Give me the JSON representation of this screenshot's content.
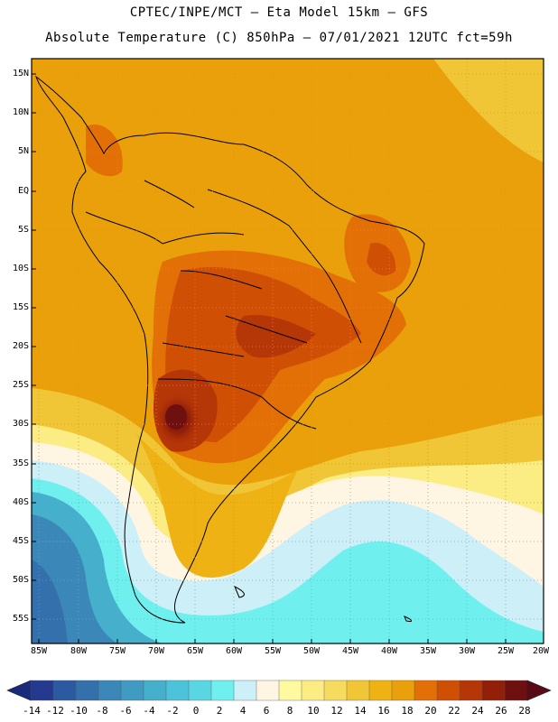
{
  "header": {
    "line1": "CPTEC/INPE/MCT – Eta Model 15km – GFS",
    "line2": "Absolute Temperature (C) 850hPa – 07/01/2021 12UTC fct=59h"
  },
  "map": {
    "region": "South America",
    "lat_labels": [
      "15N",
      "10N",
      "5N",
      "EQ",
      "5S",
      "10S",
      "15S",
      "20S",
      "25S",
      "30S",
      "35S",
      "40S",
      "45S",
      "50S",
      "55S"
    ],
    "lon_labels": [
      "85W",
      "80W",
      "75W",
      "70W",
      "65W",
      "60W",
      "55W",
      "50W",
      "45W",
      "40W",
      "35W",
      "30W",
      "25W",
      "20W"
    ]
  },
  "colorbar": {
    "labels": [
      "-14",
      "-12",
      "-10",
      "-8",
      "-6",
      "-4",
      "-2",
      "0",
      "2",
      "4",
      "6",
      "8",
      "10",
      "12",
      "14",
      "16",
      "18",
      "20",
      "22",
      "24",
      "26",
      "28"
    ],
    "colors": [
      "#253a8f",
      "#2c5aa0",
      "#3470ac",
      "#3a87b8",
      "#409bc2",
      "#45afcc",
      "#4cc3d8",
      "#5ad6e3",
      "#6ff0ee",
      "#cdeff8",
      "#fff5e3",
      "#fffaa0",
      "#fbec83",
      "#f6dc5e",
      "#f0c636",
      "#eeb214",
      "#eaa00a",
      "#e27006",
      "#cf5005",
      "#b53607",
      "#922009",
      "#6e1010"
    ]
  }
}
